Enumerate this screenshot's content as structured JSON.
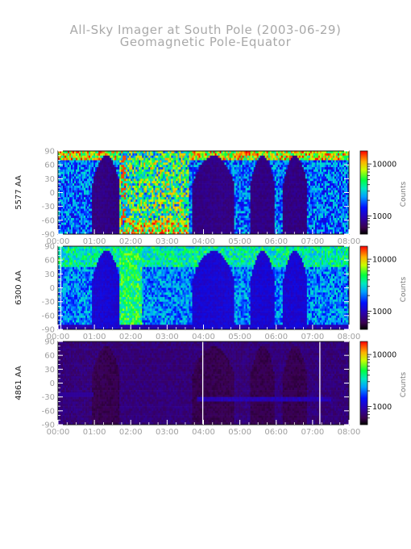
{
  "title": "All-Sky Imager at South Pole (2003-06-29)",
  "subtitle": "Geomagnetic Pole-Equator",
  "chart_data": [
    {
      "type": "heatmap",
      "ylabel": "5577 AA",
      "x_ticks": [
        "00:00",
        "01:00",
        "02:00",
        "03:00",
        "04:00",
        "05:00",
        "06:00",
        "07:00",
        "08:00"
      ],
      "xlim": [
        "00:00",
        "08:00"
      ],
      "y_ticks": [
        90,
        60,
        30,
        0,
        -30,
        -60,
        -90
      ],
      "ylim": [
        -90,
        90
      ],
      "colorbar": {
        "label": "Counts",
        "ticks": [
          1000,
          10000
        ],
        "tick_labels": [
          "1000",
          "10000"
        ],
        "scale": "log"
      }
    },
    {
      "type": "heatmap",
      "ylabel": "6300 AA",
      "x_ticks": [
        "00:00",
        "01:00",
        "02:00",
        "03:00",
        "04:00",
        "05:00",
        "06:00",
        "07:00",
        "08:00"
      ],
      "xlim": [
        "00:00",
        "08:00"
      ],
      "y_ticks": [
        90,
        60,
        30,
        0,
        -30,
        -60,
        -90
      ],
      "ylim": [
        -90,
        90
      ],
      "colorbar": {
        "label": "Counts",
        "ticks": [
          1000,
          10000
        ],
        "tick_labels": [
          "1000",
          "10000"
        ],
        "scale": "log"
      }
    },
    {
      "type": "heatmap",
      "ylabel": "4861 AA",
      "x_ticks": [
        "00:00",
        "01:00",
        "02:00",
        "03:00",
        "04:00",
        "05:00",
        "06:00",
        "07:00",
        "08:00"
      ],
      "xlim": [
        "00:00",
        "08:00"
      ],
      "y_ticks": [
        90,
        60,
        30,
        0,
        -30,
        -60,
        -90
      ],
      "ylim": [
        -90,
        90
      ],
      "colorbar": {
        "label": "Counts",
        "ticks": [
          1000,
          10000
        ],
        "tick_labels": [
          "1000",
          "10000"
        ],
        "scale": "log"
      }
    }
  ]
}
